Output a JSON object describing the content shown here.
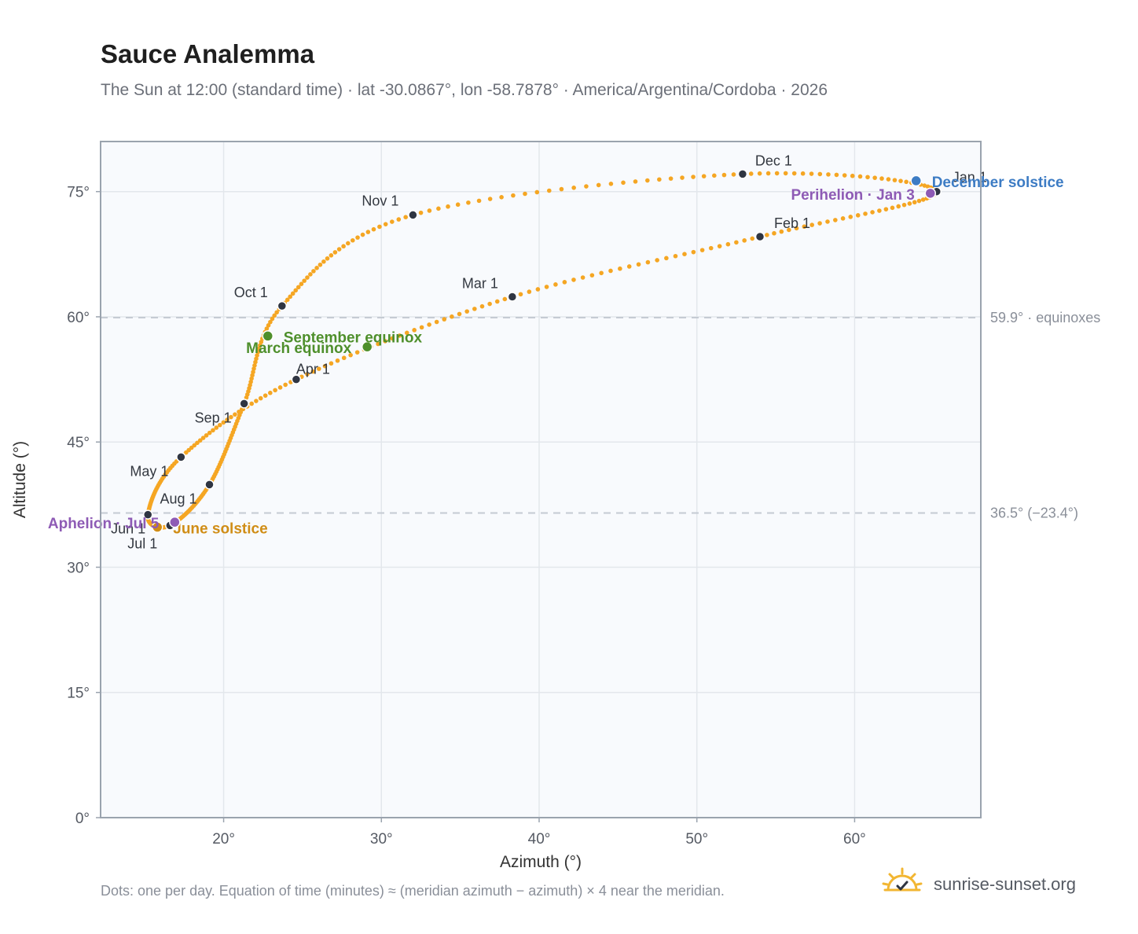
{
  "title": "Sauce Analemma",
  "subtitle": "The Sun at 12:00 (standard time) · lat -30.0867°, lon -58.7878° · America/Argentina/Cordoba · 2026",
  "footnote": "Dots: one per day. Equation of time (minutes) ≈ (meridian azimuth − azimuth) × 4 near the meridian.",
  "brand": {
    "name": "sunrise-sunset.org",
    "icon": "sun-logo-icon"
  },
  "colors": {
    "analemma": "#f5a623",
    "month_marker": "#2f3542",
    "equinox": "#4e8f2b",
    "june_solstice": "#d08d16",
    "december_solstice": "#3d7cc4",
    "apsis": "#8e5bb5",
    "reference_line": "#c5cbd3",
    "plot_background": "#f8fafd",
    "grid": "#e3e7ec",
    "frame": "#9aa3ae"
  },
  "chart_data": {
    "type": "scatter",
    "title": "Sauce Analemma",
    "subtitle": "The Sun at 12:00 (standard time) · lat -30.0867°, lon -58.7878° · America/Argentina/Cordoba · 2026",
    "xlabel": "Azimuth (°)",
    "ylabel": "Altitude (°)",
    "xlim": [
      12.2,
      68
    ],
    "ylim": [
      0,
      81
    ],
    "x_ticks": [
      20,
      30,
      40,
      50,
      60
    ],
    "y_ticks": [
      0,
      15,
      30,
      45,
      60,
      75
    ],
    "x_tick_labels": [
      "20°",
      "30°",
      "40°",
      "50°",
      "60°"
    ],
    "y_tick_labels": [
      "0°",
      "15°",
      "30°",
      "45°",
      "60°",
      "75°"
    ],
    "grid": true,
    "reference_lines": [
      {
        "y": 59.9,
        "label": "59.9° · equinoxes"
      },
      {
        "y": 36.5,
        "label": "36.5° (−23.4°)"
      }
    ],
    "month_markers": [
      {
        "label": "Jan 1",
        "az": 65.2,
        "alt": 75.0
      },
      {
        "label": "Feb 1",
        "az": 54.0,
        "alt": 69.6
      },
      {
        "label": "Mar 1",
        "az": 38.3,
        "alt": 62.4
      },
      {
        "label": "Apr 1",
        "az": 24.6,
        "alt": 52.5
      },
      {
        "label": "May 1",
        "az": 17.3,
        "alt": 43.2
      },
      {
        "label": "Jun 1",
        "az": 15.2,
        "alt": 36.3
      },
      {
        "label": "Jul 1",
        "az": 16.6,
        "alt": 35.0
      },
      {
        "label": "Aug 1",
        "az": 19.1,
        "alt": 39.9
      },
      {
        "label": "Sep 1",
        "az": 21.3,
        "alt": 49.6
      },
      {
        "label": "Oct 1",
        "az": 23.7,
        "alt": 61.3
      },
      {
        "label": "Nov 1",
        "az": 32.0,
        "alt": 72.2
      },
      {
        "label": "Dec 1",
        "az": 52.9,
        "alt": 77.1
      }
    ],
    "events": [
      {
        "label": "December solstice",
        "az": 63.9,
        "alt": 76.3,
        "kind": "december_solstice"
      },
      {
        "label": "Perihelion · Jan 3",
        "az": 64.8,
        "alt": 74.8,
        "kind": "apsis"
      },
      {
        "label": "March equinox",
        "az": 29.1,
        "alt": 56.4,
        "kind": "equinox"
      },
      {
        "label": "September equinox",
        "az": 22.8,
        "alt": 57.7,
        "kind": "equinox"
      },
      {
        "label": "June solstice",
        "az": 15.8,
        "alt": 34.8,
        "kind": "june_solstice"
      },
      {
        "label": "Aphelion · Jul 5",
        "az": 16.9,
        "alt": 35.4,
        "kind": "apsis"
      }
    ]
  }
}
